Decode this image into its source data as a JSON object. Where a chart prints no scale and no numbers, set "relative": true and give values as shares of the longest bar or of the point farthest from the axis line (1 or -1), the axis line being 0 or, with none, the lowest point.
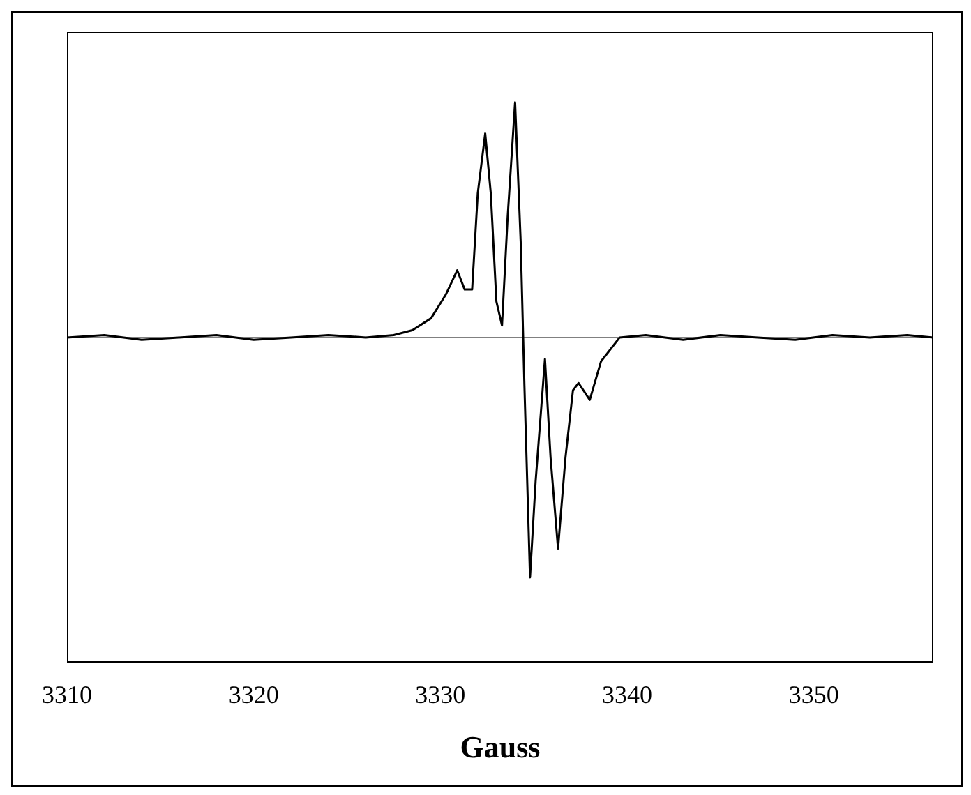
{
  "chart_data": {
    "type": "line",
    "xlabel": "Gauss",
    "relative": true,
    "xlim": [
      3310,
      3356.4
    ],
    "xticks": [
      3310,
      3320,
      3330,
      3340,
      3350
    ],
    "tick_labels": "x",
    "marker": "none",
    "line_style": "solid",
    "series": [
      {
        "color": "#000000",
        "x": [
          3310,
          3312,
          3314,
          3316,
          3318,
          3320,
          3322,
          3324,
          3326,
          3327.5,
          3328.5,
          3329.5,
          3330.3,
          3330.9,
          3331.3,
          3331.7,
          3332.0,
          3332.4,
          3332.7,
          3333.0,
          3333.3,
          3333.6,
          3334.0,
          3334.3,
          3334.5,
          3334.8,
          3335.1,
          3335.6,
          3335.9,
          3336.3,
          3336.7,
          3337.1,
          3337.4,
          3338.0,
          3338.6,
          3339.6,
          3341,
          3343,
          3345,
          3347,
          3349,
          3351,
          3353,
          3355,
          3356.4
        ],
        "values": [
          0,
          0.01,
          -0.01,
          0,
          0.01,
          -0.01,
          0,
          0.01,
          0,
          0.01,
          0.03,
          0.08,
          0.18,
          0.28,
          0.2,
          0.2,
          0.6,
          0.85,
          0.6,
          0.15,
          0.05,
          0.5,
          0.98,
          0.4,
          -0.2,
          -1,
          -0.6,
          -0.09,
          -0.5,
          -0.88,
          -0.5,
          -0.22,
          -0.19,
          -0.26,
          -0.1,
          0,
          0.01,
          -0.01,
          0.01,
          0,
          -0.01,
          0.01,
          0,
          0.01,
          0
        ]
      }
    ]
  }
}
